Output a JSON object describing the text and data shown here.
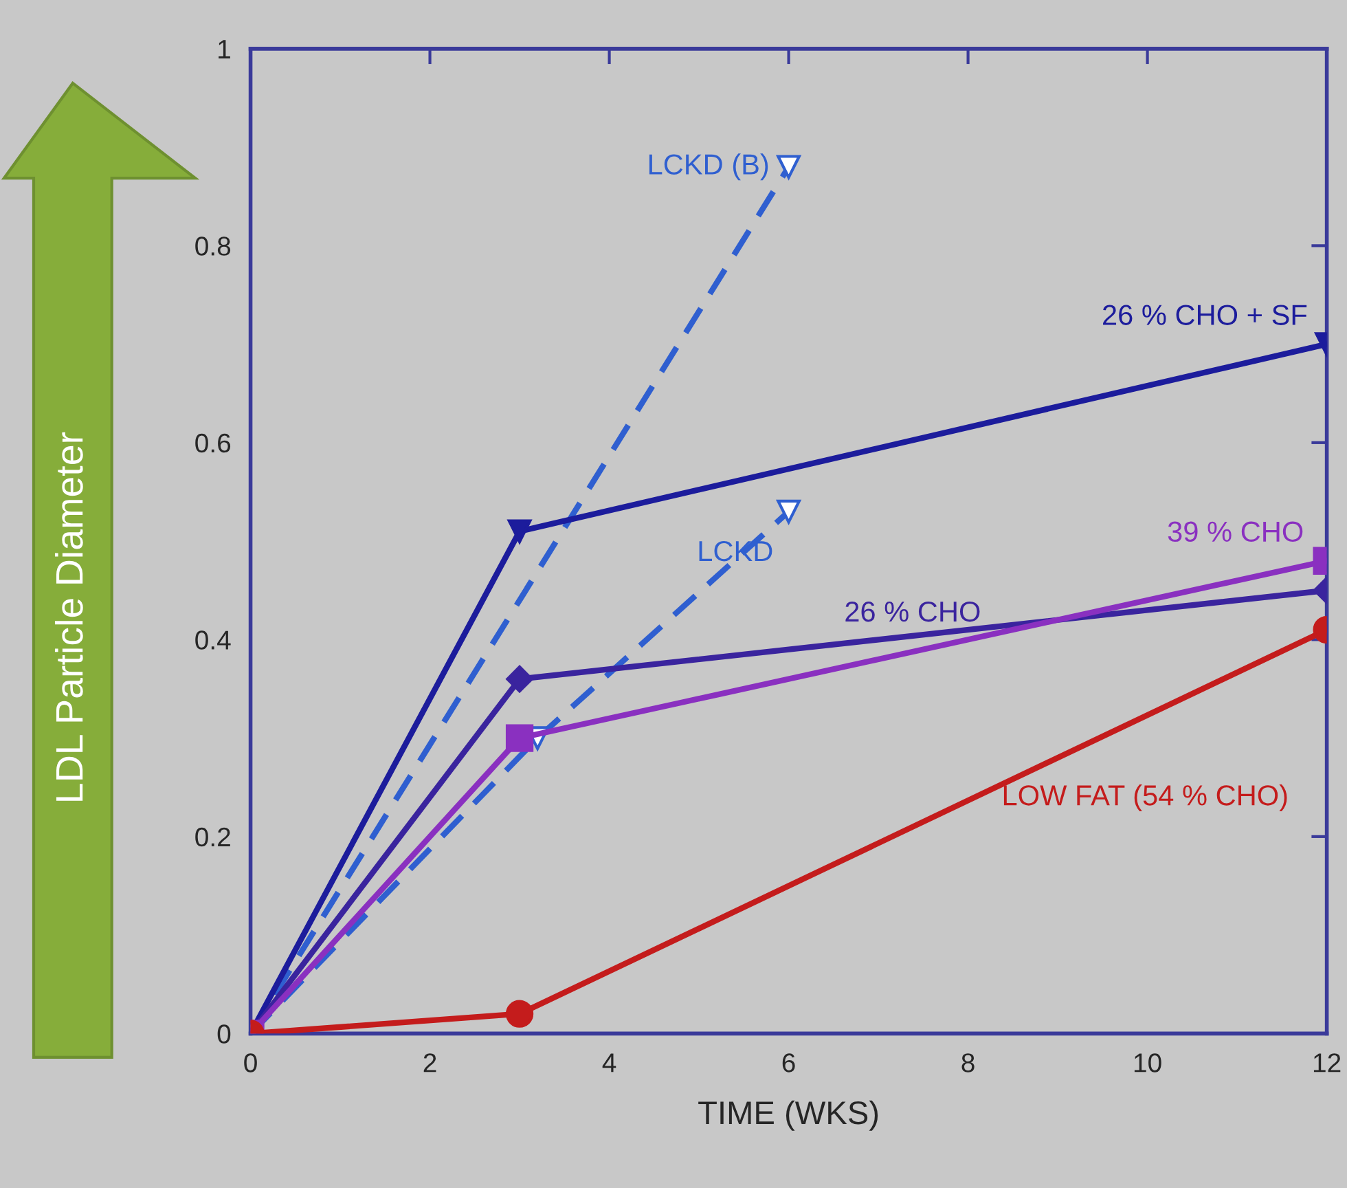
{
  "chart_data": {
    "type": "line",
    "xlabel": "TIME (WKS)",
    "ylabel": "LDL Particle Diameter",
    "xlim": [
      0,
      12
    ],
    "xticks": [
      0,
      2,
      4,
      6,
      8,
      10,
      12
    ],
    "ylim": [
      0,
      1
    ],
    "yticks": [
      0,
      0.2,
      0.4,
      0.6,
      0.8,
      1
    ],
    "legend": false,
    "series": [
      {
        "name": "LCKD (B)",
        "color": "#2f5fd0",
        "x": [
          0,
          6
        ],
        "values": [
          0,
          0.88
        ],
        "marker": "triangle",
        "line_style": "dashed"
      },
      {
        "name": "LCKD",
        "color": "#2f5fd0",
        "x": [
          0,
          3.2,
          6
        ],
        "values": [
          0,
          0.3,
          0.53
        ],
        "marker": "triangle",
        "line_style": "dashed"
      },
      {
        "name": "26 % CHO + SF",
        "color": "#1c1c9c",
        "x": [
          0,
          3,
          12
        ],
        "values": [
          0,
          0.51,
          0.7
        ],
        "marker": "triangle",
        "line_style": "solid"
      },
      {
        "name": "26 % CHO",
        "color": "#3a249e",
        "x": [
          0,
          3,
          12
        ],
        "values": [
          0,
          0.36,
          0.45
        ],
        "marker": "diamond",
        "line_style": "solid"
      },
      {
        "name": "39 % CHO",
        "color": "#8a30c0",
        "x": [
          0,
          3,
          12
        ],
        "values": [
          0,
          0.3,
          0.48
        ],
        "marker": "square",
        "line_style": "solid"
      },
      {
        "name": "LOW FAT (54 % CHO)",
        "color": "#c41c1c",
        "x": [
          0,
          3,
          12
        ],
        "values": [
          0,
          0.02,
          0.41
        ],
        "marker": "circle",
        "line_style": "solid"
      }
    ]
  }
}
